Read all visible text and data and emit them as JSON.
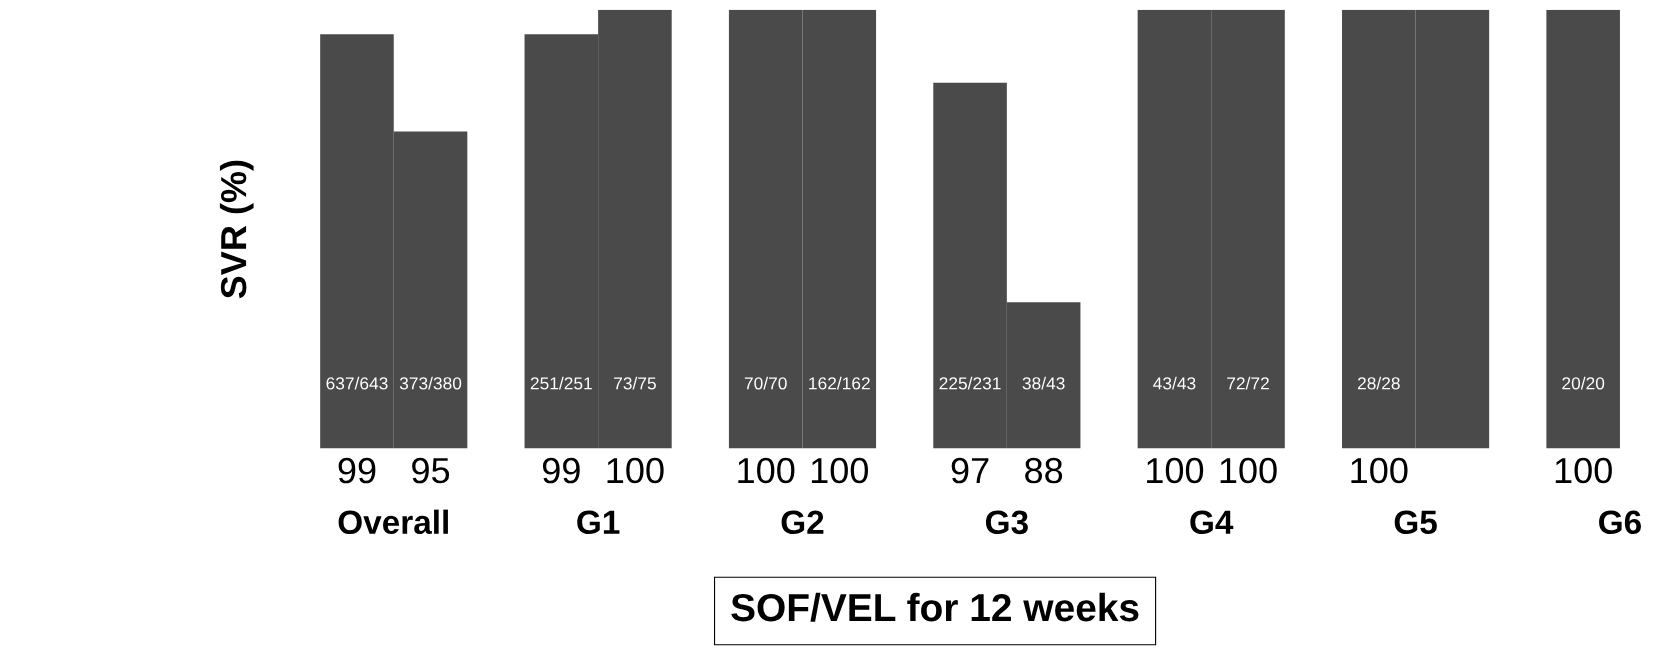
{
  "chart_data": {
    "type": "bar",
    "xlabel": "SOF/VEL for 12 weeks",
    "ylabel": "SVR (%)",
    "categories": [
      "Overall",
      "G1",
      "G2",
      "G3",
      "G4",
      "G5",
      "G6"
    ],
    "ylim": [
      82,
      100
    ],
    "grid": false,
    "legend": false,
    "tick_labels": "x",
    "series": [
      {
        "color": "#4a4a4a",
        "values": [
          99,
          99,
          100,
          97,
          100,
          100,
          100
        ],
        "value_labels": [
          "99",
          "99",
          "100",
          "97",
          "100",
          "100",
          "100"
        ]
      },
      {
        "color": "#4a4a4a",
        "values": [
          95,
          100,
          100,
          88,
          100,
          100,
          null
        ],
        "value_labels": [
          "95",
          "100",
          "100",
          "88",
          "100",
          null,
          null
        ]
      }
    ],
    "annotations": [
      "637/643",
      "251/251",
      "70/70",
      "225/231",
      "43/43",
      "28/28",
      "20/20",
      "373/380",
      "73/75",
      "162/162",
      "38/43",
      "72/72"
    ]
  }
}
